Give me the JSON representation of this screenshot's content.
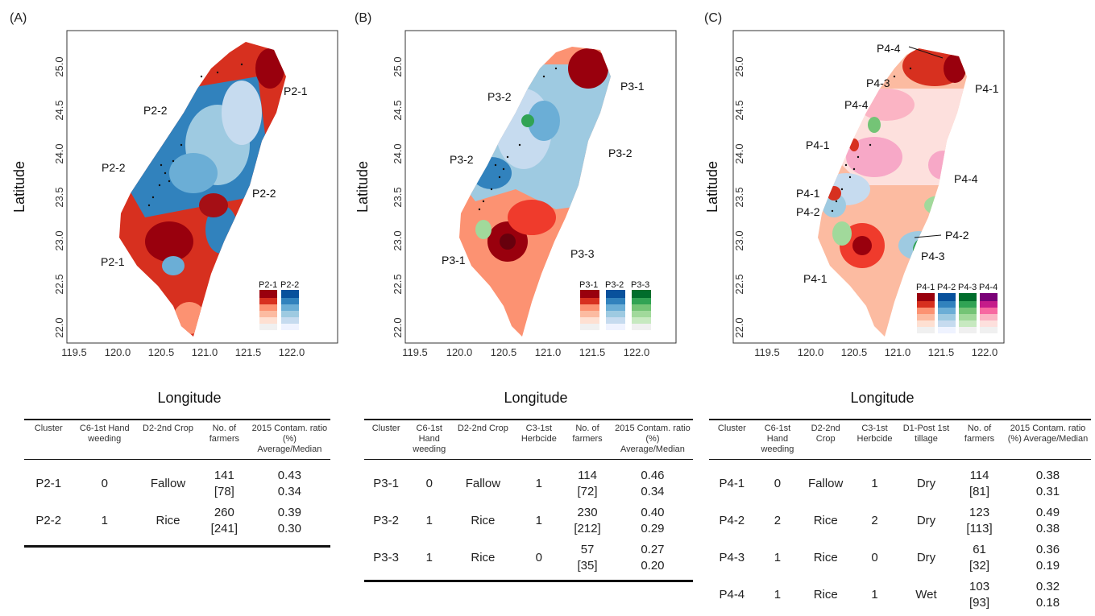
{
  "panels": [
    {
      "label": "(A)",
      "xlabel": "Longitude",
      "ylabel": "Latitude",
      "xticks": [
        "119.5",
        "120.0",
        "120.5",
        "121.0",
        "121.5",
        "122.0"
      ],
      "yticks": [
        "25.0",
        "24.5",
        "24.0",
        "23.5",
        "23.0",
        "22.5",
        "22.0"
      ],
      "annotations": [
        "P2-1",
        "P2-2",
        "P2-2",
        "P2-2",
        "P2-1"
      ],
      "legend": [
        "P2-1",
        "P2-2"
      ],
      "table": {
        "headers": [
          "Cluster",
          "C6-1st Hand weeding",
          "D2-2nd Crop",
          "No. of farmers",
          "2015 Contam. ratio (%) Average/Median"
        ],
        "rows": [
          {
            "cluster": "P2-1",
            "c6": "0",
            "d2": "Fallow",
            "farmers": "141",
            "farmers_sub": "[78]",
            "avg": "0.43",
            "median": "0.34"
          },
          {
            "cluster": "P2-2",
            "c6": "1",
            "d2": "Rice",
            "farmers": "260",
            "farmers_sub": "[241]",
            "avg": "0.39",
            "median": "0.30"
          }
        ]
      }
    },
    {
      "label": "(B)",
      "xlabel": "Longitude",
      "ylabel": "Latitude",
      "xticks": [
        "119.5",
        "120.0",
        "120.5",
        "121.0",
        "121.5",
        "122.0"
      ],
      "yticks": [
        "25.0",
        "24.5",
        "24.0",
        "23.5",
        "23.0",
        "22.5",
        "22.0"
      ],
      "annotations": [
        "P3-1",
        "P3-2",
        "P3-2",
        "P3-2",
        "P3-1",
        "P3-3"
      ],
      "legend": [
        "P3-1",
        "P3-2",
        "P3-3"
      ],
      "table": {
        "headers": [
          "Cluster",
          "C6-1st Hand weeding",
          "D2-2nd Crop",
          "C3-1st Herbcide",
          "No. of farmers",
          "2015 Contam. ratio (%) Average/Median"
        ],
        "rows": [
          {
            "cluster": "P3-1",
            "c6": "0",
            "d2": "Fallow",
            "c3": "1",
            "farmers": "114",
            "farmers_sub": "[72]",
            "avg": "0.46",
            "median": "0.34"
          },
          {
            "cluster": "P3-2",
            "c6": "1",
            "d2": "Rice",
            "c3": "1",
            "farmers": "230",
            "farmers_sub": "[212]",
            "avg": "0.40",
            "median": "0.29"
          },
          {
            "cluster": "P3-3",
            "c6": "1",
            "d2": "Rice",
            "c3": "0",
            "farmers": "57",
            "farmers_sub": "[35]",
            "avg": "0.27",
            "median": "0.20"
          }
        ]
      }
    },
    {
      "label": "(C)",
      "xlabel": "Longitude",
      "ylabel": "Latitude",
      "xticks": [
        "119.5",
        "120.0",
        "120.5",
        "121.0",
        "121.5",
        "122.0"
      ],
      "yticks": [
        "25.0",
        "24.5",
        "24.0",
        "23.5",
        "23.0",
        "22.5",
        "22.0"
      ],
      "annotations": [
        "P4-4",
        "P4-3",
        "P4-1",
        "P4-4",
        "P4-1",
        "P4-4",
        "P4-1",
        "P4-2",
        "P4-2",
        "P4-3",
        "P4-1"
      ],
      "legend": [
        "P4-1",
        "P4-2",
        "P4-3",
        "P4-4"
      ],
      "table": {
        "headers": [
          "Cluster",
          "C6-1st Hand weeding",
          "D2-2nd Crop",
          "C3-1st Herbcide",
          "D1-Post 1st tillage",
          "No. of farmers",
          "2015 Contam. ratio (%) Average/Median"
        ],
        "rows": [
          {
            "cluster": "P4-1",
            "c6": "0",
            "d2": "Fallow",
            "c3": "1",
            "d1": "Dry",
            "farmers": "114",
            "farmers_sub": "[81]",
            "avg": "0.38",
            "median": "0.31"
          },
          {
            "cluster": "P4-2",
            "c6": "2",
            "d2": "Rice",
            "c3": "2",
            "d1": "Dry",
            "farmers": "123",
            "farmers_sub": "[113]",
            "avg": "0.49",
            "median": "0.38"
          },
          {
            "cluster": "P4-3",
            "c6": "1",
            "d2": "Rice",
            "c3": "0",
            "d1": "Dry",
            "farmers": "61",
            "farmers_sub": "[32]",
            "avg": "0.36",
            "median": "0.19"
          },
          {
            "cluster": "P4-4",
            "c6": "1",
            "d2": "Rice",
            "c3": "1",
            "d1": "Wet",
            "farmers": "103",
            "farmers_sub": "[93]",
            "avg": "0.32",
            "median": "0.18"
          }
        ]
      }
    }
  ],
  "colors": {
    "red": "#d7301f",
    "darkred": "#99000d",
    "blue": "#3182bd",
    "lightblue": "#9ecae1",
    "green": "#31a354",
    "lightgreen": "#a1d99b",
    "pink": "#fbb4c4",
    "magenta": "#e7298a",
    "salmon": "#fc9272"
  }
}
